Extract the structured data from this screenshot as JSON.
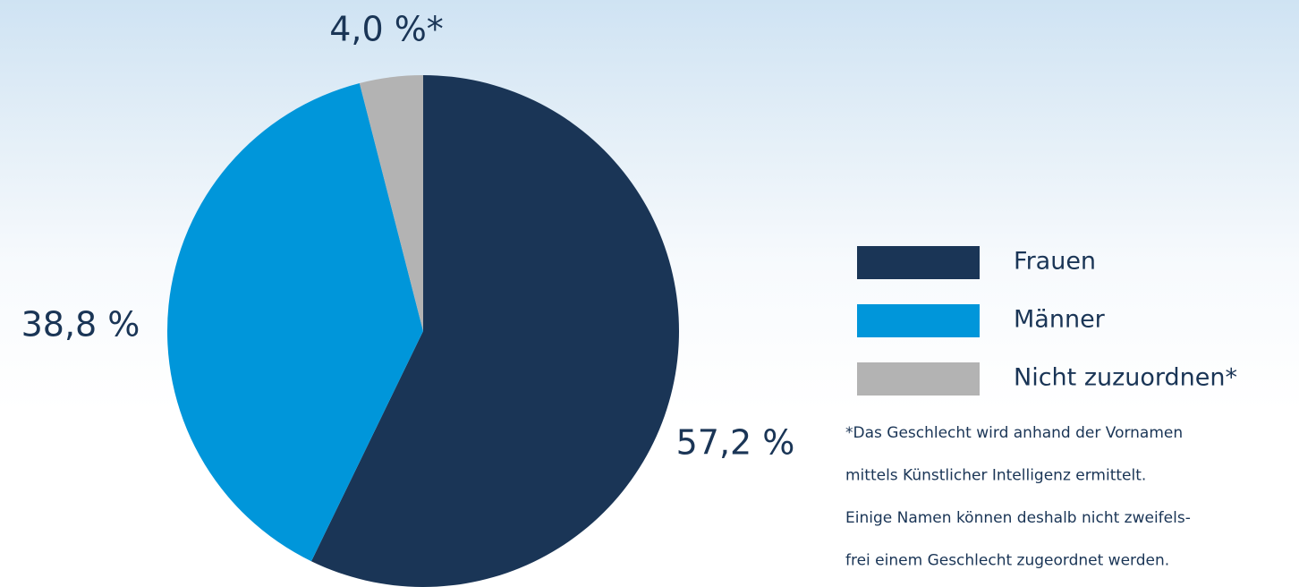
{
  "chart_data": {
    "type": "pie",
    "categories": [
      "Frauen",
      "Männer",
      "Nicht zuzuordnen*"
    ],
    "values": [
      57.2,
      38.8,
      4.0
    ],
    "value_labels": [
      "57,2 %",
      "38,8 %",
      "4,0 %*"
    ],
    "colors": [
      "#1a3556",
      "#0096da",
      "#b3b3b3"
    ],
    "footnote": [
      "*Das Geschlecht wird anhand der Vornamen",
      "mittels Künstlicher Intelligenz ermittelt.",
      "Einige Namen können deshalb nicht zweifels-",
      "frei einem Geschlecht zugeordnet werden."
    ]
  }
}
